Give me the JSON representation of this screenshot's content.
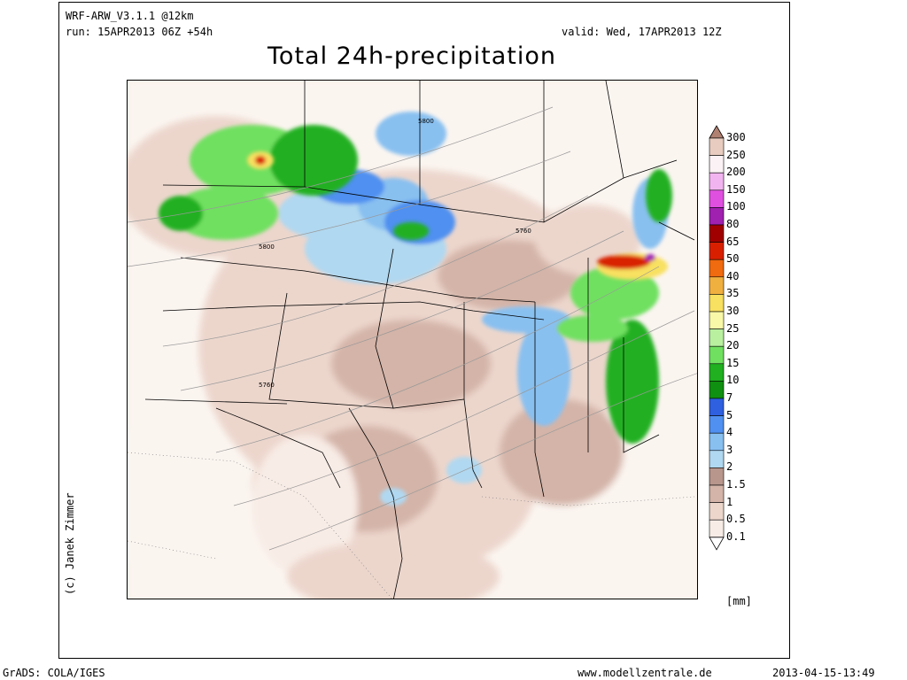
{
  "header": {
    "model": "WRF-ARW_V3.1.1 @12km",
    "run": "run: 15APR2013 06Z +54h",
    "valid": "valid: Wed, 17APR2013 12Z",
    "title": "Total 24h-precipitation"
  },
  "credit": "(c) Janek Zimmer",
  "contour_labels": [
    "5800",
    "5800",
    "5760",
    "5760"
  ],
  "legend": {
    "unit": "[mm]",
    "levels": [
      "300",
      "250",
      "200",
      "150",
      "100",
      "80",
      "65",
      "50",
      "40",
      "35",
      "30",
      "25",
      "20",
      "15",
      "10",
      "7",
      "5",
      "4",
      "3",
      "2",
      "1.5",
      "1",
      "0.5",
      "0.1"
    ],
    "colors": [
      "#b08070",
      "#e8ccc0",
      "#fbf2f5",
      "#f2b4f0",
      "#e050e0",
      "#a020b0",
      "#a00000",
      "#d82000",
      "#f06a10",
      "#f0b040",
      "#f8e060",
      "#f8f8a8",
      "#b8f0a0",
      "#70e060",
      "#20b020",
      "#109010",
      "#2e60e0",
      "#5090f0",
      "#88c0f0",
      "#b0d8f0",
      "#b8968c",
      "#d4b4a8",
      "#ecd6cc",
      "#f8ece6"
    ]
  },
  "footer": {
    "left": "GrADS: COLA/IGES",
    "center": "www.modellzentrale.de",
    "right": "2013-04-15-13:49"
  }
}
